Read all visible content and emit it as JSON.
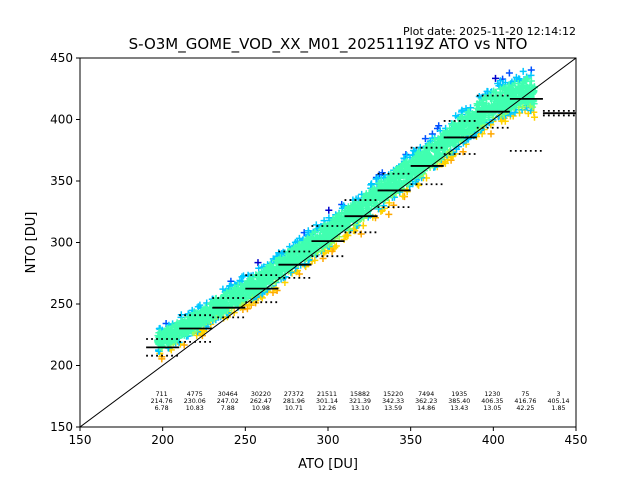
{
  "chart_data": {
    "type": "scatter",
    "title": "S-O3M_GOME_VOD_XX_M01_20251119Z ATO vs NTO",
    "plot_date": "Plot date: 2025-11-20 12:14:12",
    "xlabel": "ATO [DU]",
    "ylabel": "NTO [DU]",
    "xlim": [
      150,
      450
    ],
    "ylim": [
      150,
      450
    ],
    "xticks": [
      "150",
      "200",
      "250",
      "300",
      "350",
      "400",
      "450"
    ],
    "yticks": [
      "150",
      "200",
      "250",
      "300",
      "350",
      "400",
      "450"
    ],
    "xtick_values": [
      150,
      200,
      250,
      300,
      350,
      400,
      450
    ],
    "ytick_values": [
      150,
      200,
      250,
      300,
      350,
      400,
      450
    ],
    "grid": false,
    "legend": "none",
    "one_to_one_line": true,
    "marker": "+",
    "density_colors": [
      "#00c8ff",
      "#40ffb0",
      "#90ff60",
      "#ffd200",
      "#ffa800",
      "#0050ff",
      "#0000cc"
    ],
    "bins": [
      {
        "x": 200,
        "count": "711",
        "mean": "214.76",
        "std": "6.78",
        "mean_value": 214.76,
        "std_value": 6.78
      },
      {
        "x": 220,
        "count": "4775",
        "mean": "230.06",
        "std": "10.83",
        "mean_value": 230.06,
        "std_value": 10.83
      },
      {
        "x": 240,
        "count": "30464",
        "mean": "247.02",
        "std": "7.88",
        "mean_value": 247.02,
        "std_value": 7.88
      },
      {
        "x": 260,
        "count": "30220",
        "mean": "262.47",
        "std": "10.98",
        "mean_value": 262.47,
        "std_value": 10.98
      },
      {
        "x": 280,
        "count": "27372",
        "mean": "281.96",
        "std": "10.71",
        "mean_value": 281.96,
        "std_value": 10.71
      },
      {
        "x": 300,
        "count": "21511",
        "mean": "301.14",
        "std": "12.26",
        "mean_value": 301.14,
        "std_value": 12.26
      },
      {
        "x": 320,
        "count": "15882",
        "mean": "321.39",
        "std": "13.10",
        "mean_value": 321.39,
        "std_value": 13.1
      },
      {
        "x": 340,
        "count": "15220",
        "mean": "342.33",
        "std": "13.59",
        "mean_value": 342.33,
        "std_value": 13.59
      },
      {
        "x": 360,
        "count": "7494",
        "mean": "362.23",
        "std": "14.86",
        "mean_value": 362.23,
        "std_value": 14.86
      },
      {
        "x": 380,
        "count": "1935",
        "mean": "385.40",
        "std": "13.43",
        "mean_value": 385.4,
        "std_value": 13.43
      },
      {
        "x": 400,
        "count": "1230",
        "mean": "406.35",
        "std": "13.05",
        "mean_value": 406.35,
        "std_value": 13.05
      },
      {
        "x": 420,
        "count": "75",
        "mean": "416.76",
        "std": "42.25",
        "mean_value": 416.76,
        "std_value": 42.25
      },
      {
        "x": 440,
        "count": "3",
        "mean": "405.14",
        "std": "1.85",
        "mean_value": 405.14,
        "std_value": 1.85
      }
    ]
  }
}
